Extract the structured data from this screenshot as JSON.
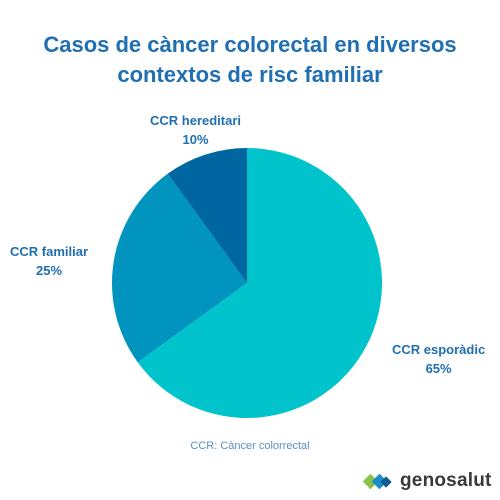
{
  "chart_data": {
    "type": "pie",
    "title_lines": [
      "Casos de càncer colorectal en diversos",
      "contextos de risc familiar"
    ],
    "slices": [
      {
        "label": "CCR esporàdic",
        "value": 65,
        "value_label": "65%",
        "color": "#00c3cc"
      },
      {
        "label": "CCR familiar",
        "value": 25,
        "value_label": "25%",
        "color": "#0094bf"
      },
      {
        "label": "CCR hereditari",
        "value": 10,
        "value_label": "10%",
        "color": "#0066a1"
      }
    ],
    "start": "top",
    "direction": "clockwise"
  },
  "footnote": "CCR: Càncer colorrectal",
  "brand": {
    "name": "genosalut",
    "icon": "genosalut-logo-icon",
    "colors": [
      "#8bc34a",
      "#1a8fc7",
      "#0d5c91"
    ]
  }
}
